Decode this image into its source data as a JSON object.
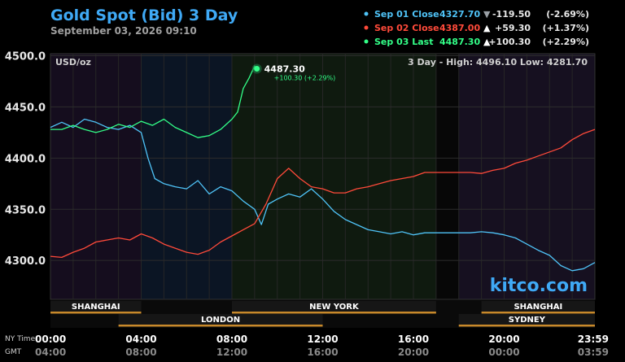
{
  "header": {
    "title": "Gold Spot (Bid) 3 Day",
    "datetime": "September 03, 2026 09:10"
  },
  "legend": [
    {
      "label": "Sep 01 Close",
      "price": "4327.70",
      "arrow": "▼",
      "change": "-119.50",
      "pct": "(-2.69%)",
      "color": "#4fc3f7",
      "arrow_color": "#9aa0a6"
    },
    {
      "label": "Sep 02 Close",
      "price": "4387.00",
      "arrow": "▲",
      "change": "+59.30",
      "pct": "(+1.37%)",
      "color": "#ff4a3a",
      "arrow_color": "#ffffff"
    },
    {
      "label": "Sep 03 Last",
      "price": "4487.30",
      "arrow": "▲",
      "change": "+100.30",
      "pct": "(+2.29%)",
      "color": "#33ff88",
      "arrow_color": "#ffffff"
    }
  ],
  "panel": {
    "unit": "USD/oz",
    "range_text": "3 Day - High: 4496.10  Low: 4281.70",
    "watermark": "kitco.com",
    "last_label": "4487.30",
    "last_change": "+100.30 (+2.29%)"
  },
  "sessions_top": [
    {
      "name": "SHANGHAI",
      "start": 0,
      "end": 4
    },
    {
      "name": "NEW YORK",
      "start": 8,
      "end": 17
    },
    {
      "name": "SHANGHAI",
      "start": 19,
      "end": 24
    }
  ],
  "sessions_bottom": [
    {
      "name": "LONDON",
      "start": 3,
      "end": 12
    },
    {
      "name": "SYDNEY",
      "start": 18,
      "end": 24
    }
  ],
  "time_axis": {
    "row1_label": "NY Time",
    "row2_label": "GMT",
    "row1": [
      "00:00",
      "04:00",
      "08:00",
      "12:00",
      "16:00",
      "20:00",
      "23:59"
    ],
    "row2": [
      "04:00",
      "08:00",
      "12:00",
      "16:00",
      "20:00",
      "00:00",
      "03:59"
    ]
  },
  "chart_data": {
    "type": "line",
    "xlabel": "",
    "ylabel": "USD/oz",
    "ylim": [
      4262,
      4502
    ],
    "xlim": [
      0,
      24
    ],
    "yticks": [
      "4300.0",
      "4350.0",
      "4400.0",
      "4450.0",
      "4500.0"
    ],
    "ytick_values": [
      4300,
      4350,
      4400,
      4450,
      4500
    ],
    "grid": true,
    "series": [
      {
        "name": "Sep 01 Close",
        "color": "#4fc3f7",
        "x": [
          0,
          0.5,
          1,
          1.5,
          2,
          2.5,
          3,
          3.5,
          4,
          4.3,
          4.6,
          5,
          5.5,
          6,
          6.5,
          7,
          7.5,
          8,
          8.5,
          9,
          9.3,
          9.6,
          10,
          10.5,
          11,
          11.5,
          12,
          12.5,
          13,
          13.5,
          14,
          14.5,
          15,
          15.5,
          16,
          16.5,
          17,
          17.5,
          18,
          18.5,
          19,
          19.5,
          20,
          20.5,
          21,
          21.5,
          22,
          22.5,
          23,
          23.5,
          24
        ],
        "y": [
          4430,
          4435,
          4430,
          4438,
          4435,
          4430,
          4428,
          4432,
          4425,
          4400,
          4380,
          4375,
          4372,
          4370,
          4378,
          4365,
          4372,
          4368,
          4358,
          4350,
          4335,
          4355,
          4360,
          4365,
          4362,
          4370,
          4360,
          4348,
          4340,
          4335,
          4330,
          4328,
          4326,
          4328,
          4325,
          4327,
          4327,
          4327,
          4327,
          4327,
          4328,
          4327,
          4325,
          4322,
          4316,
          4310,
          4305,
          4295,
          4290,
          4292,
          4298
        ]
      },
      {
        "name": "Sep 02 Close",
        "color": "#ff4a3a",
        "x": [
          0,
          0.5,
          1,
          1.5,
          2,
          2.5,
          3,
          3.5,
          4,
          4.5,
          5,
          5.5,
          6,
          6.5,
          7,
          7.5,
          8,
          8.5,
          9,
          9.5,
          10,
          10.5,
          11,
          11.5,
          12,
          12.5,
          13,
          13.5,
          14,
          14.5,
          15,
          15.5,
          16,
          16.5,
          17,
          17.5,
          18,
          18.5,
          19,
          19.5,
          20,
          20.5,
          21,
          21.5,
          22,
          22.5,
          23,
          23.5,
          24
        ],
        "y": [
          4304,
          4303,
          4308,
          4312,
          4318,
          4320,
          4322,
          4320,
          4326,
          4322,
          4316,
          4312,
          4308,
          4306,
          4310,
          4318,
          4324,
          4330,
          4336,
          4355,
          4380,
          4390,
          4380,
          4372,
          4370,
          4366,
          4366,
          4370,
          4372,
          4375,
          4378,
          4380,
          4382,
          4386,
          4386,
          4386,
          4386,
          4386,
          4385,
          4388,
          4390,
          4395,
          4398,
          4402,
          4406,
          4410,
          4418,
          4424,
          4428
        ]
      },
      {
        "name": "Sep 03 Last",
        "color": "#33ff88",
        "x": [
          0,
          0.5,
          1,
          1.5,
          2,
          2.5,
          3,
          3.5,
          4,
          4.5,
          5,
          5.5,
          6,
          6.5,
          7,
          7.5,
          8,
          8.25,
          8.5,
          8.75,
          9,
          9.1
        ],
        "y": [
          4428,
          4428,
          4432,
          4428,
          4425,
          4428,
          4433,
          4430,
          4436,
          4432,
          4438,
          4430,
          4425,
          4420,
          4422,
          4428,
          4438,
          4445,
          4468,
          4478,
          4490,
          4487.3
        ]
      }
    ]
  }
}
